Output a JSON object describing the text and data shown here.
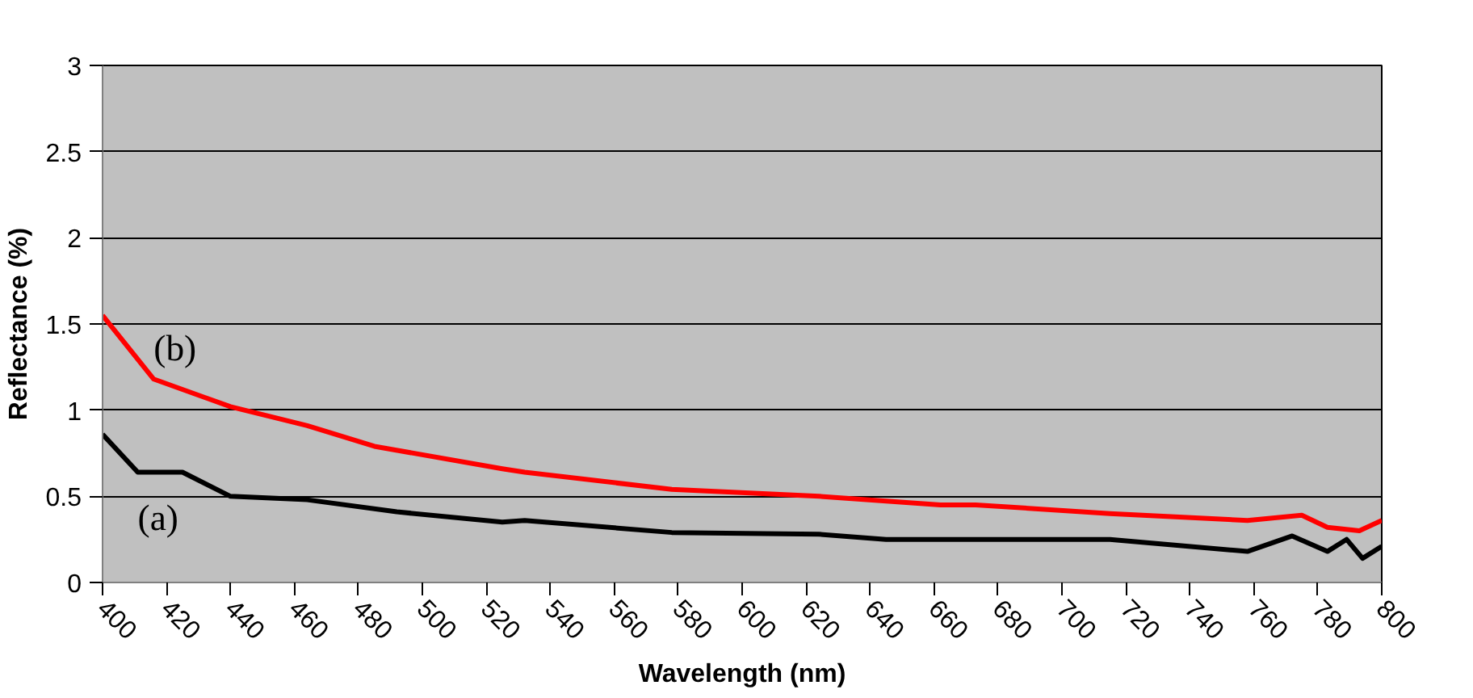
{
  "chart_data": {
    "type": "line",
    "xlabel": "Wavelength (nm)",
    "ylabel": "Reflectance (%)",
    "xlim": [
      400,
      800
    ],
    "xticks": [
      400,
      420,
      440,
      460,
      480,
      500,
      520,
      540,
      560,
      580,
      600,
      620,
      640,
      660,
      680,
      700,
      720,
      740,
      760,
      780,
      800
    ],
    "ylim": [
      0,
      3
    ],
    "yticks": [
      0,
      0.5,
      1,
      1.5,
      2,
      2.5,
      3
    ],
    "grid": "y",
    "marker": "none",
    "line_style": "solid",
    "series": [
      {
        "name": "(a)",
        "color": "#000000",
        "x": [
          400,
          411,
          425,
          440,
          464,
          492,
          525,
          532,
          578,
          624,
          645,
          662,
          673,
          715,
          758,
          772,
          783,
          789,
          794,
          800
        ],
        "values": [
          0.86,
          0.64,
          0.64,
          0.5,
          0.48,
          0.41,
          0.35,
          0.36,
          0.29,
          0.28,
          0.25,
          0.25,
          0.25,
          0.25,
          0.18,
          0.27,
          0.18,
          0.25,
          0.14,
          0.21
        ]
      },
      {
        "name": "(b)",
        "color": "#ff0000",
        "x": [
          400,
          416,
          440,
          464,
          485,
          525,
          532,
          578,
          624,
          662,
          673,
          715,
          758,
          775,
          783,
          793,
          800
        ],
        "values": [
          1.55,
          1.18,
          1.02,
          0.91,
          0.79,
          0.66,
          0.64,
          0.54,
          0.5,
          0.45,
          0.45,
          0.4,
          0.36,
          0.39,
          0.32,
          0.3,
          0.36
        ]
      }
    ]
  }
}
